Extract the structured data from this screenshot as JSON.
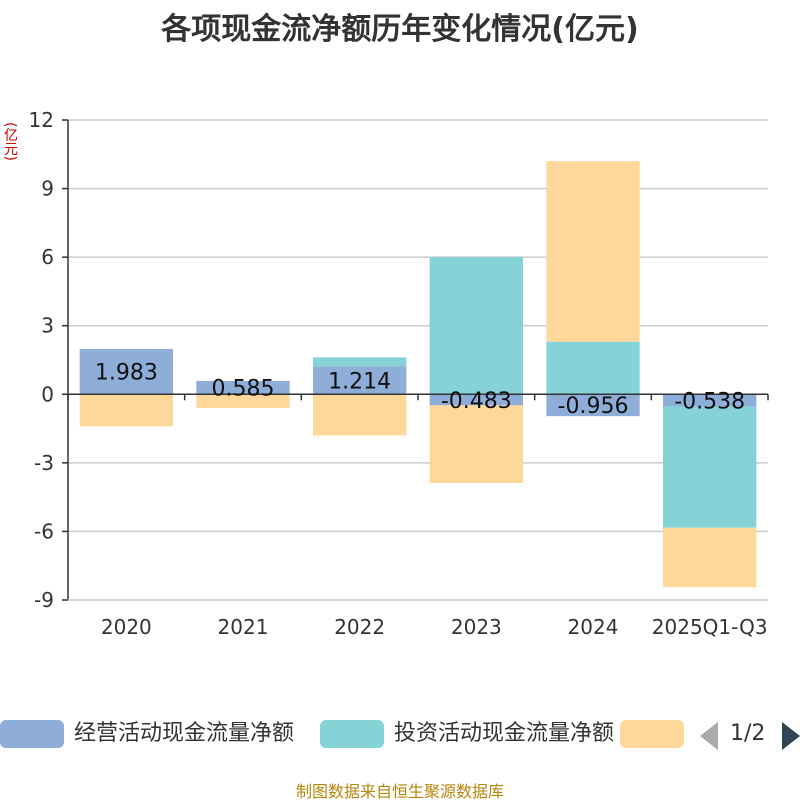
{
  "chart_data": {
    "type": "bar",
    "stacked": true,
    "title": "各项现金流净额历年变化情况(亿元)",
    "y_unit": "(亿元)",
    "categories": [
      "2020",
      "2021",
      "2022",
      "2023",
      "2024",
      "2025Q1-Q3"
    ],
    "ylim": [
      -9,
      12
    ],
    "yticks": [
      -9,
      -6,
      -3,
      0,
      3,
      6,
      9,
      12
    ],
    "ytick_labels": [
      "-9",
      "-6",
      "-3",
      "0",
      "3",
      "6",
      "9",
      "12"
    ],
    "grid": true,
    "series": [
      {
        "name": "经营活动现金流量净额",
        "color": "#8eadd9",
        "values": [
          1.983,
          0.585,
          1.214,
          -0.483,
          -0.956,
          -0.538
        ],
        "labels": [
          "1.983",
          "0.585",
          "1.214",
          "-0.483",
          "-0.956",
          "-0.538"
        ]
      },
      {
        "name": "投资活动现金流量净额",
        "color": "#86d3d7",
        "values": [
          0,
          0,
          0.4,
          6.0,
          2.3,
          -5.3
        ]
      },
      {
        "name": "",
        "color": "#fdd89a",
        "values": [
          -1.4,
          -0.6,
          -1.8,
          -3.4,
          7.9,
          -2.6
        ]
      }
    ],
    "legend": {
      "placement": "bottom",
      "page": "1/2"
    }
  },
  "source_note": "制图数据来自恒生聚源数据库"
}
